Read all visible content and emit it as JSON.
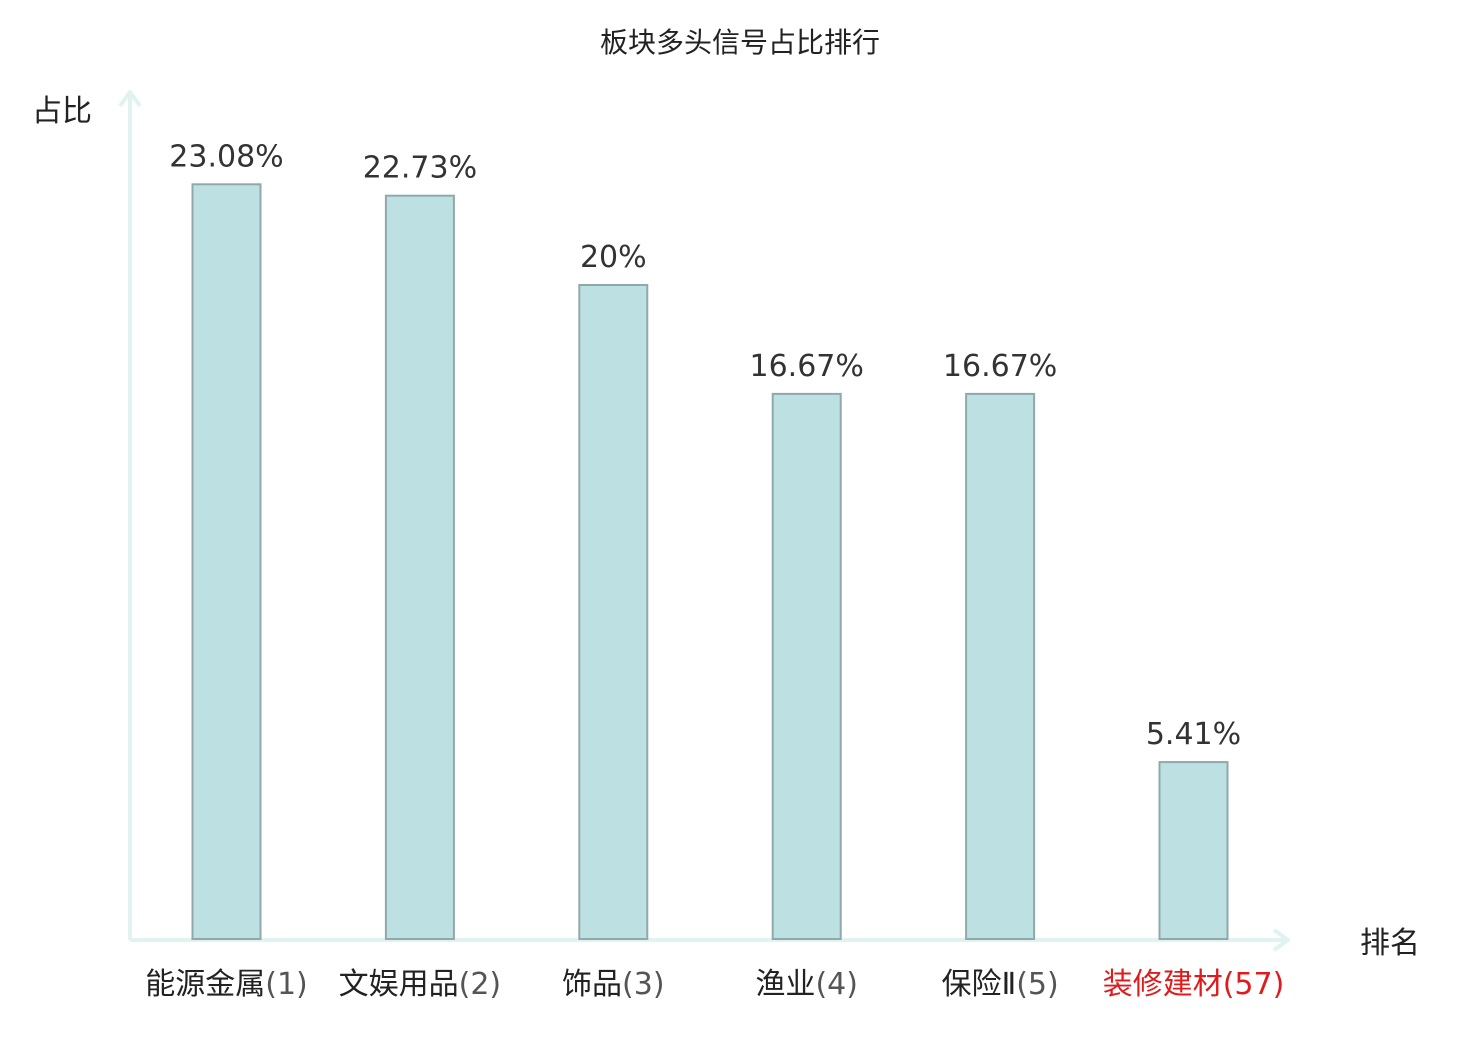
{
  "chart_data": {
    "type": "bar",
    "title": "板块多头信号占比排行",
    "xlabel": "排名",
    "ylabel": "占比",
    "categories": [
      "能源金属",
      "文娱用品",
      "饰品",
      "渔业",
      "保险Ⅱ",
      "装修建材"
    ],
    "ranks": [
      "(1)",
      "(2)",
      "(3)",
      "(4)",
      "(5)",
      "(57)"
    ],
    "highlighted": [
      false,
      false,
      false,
      false,
      false,
      true
    ],
    "values": [
      23.08,
      22.73,
      20,
      16.67,
      16.67,
      5.41
    ],
    "value_labels": [
      "23.08%",
      "22.73%",
      "20%",
      "16.67%",
      "16.67%",
      "5.41%"
    ],
    "ylim": [
      0,
      25
    ],
    "grid": false,
    "legend": "none"
  },
  "colors": {
    "bar_fill": "#bde1e3",
    "bar_stroke": "#8fa9ab",
    "axis": "#e0f3f1",
    "label_normal": "#222222",
    "rank_normal": "#555555",
    "highlight": "#e01b1b"
  }
}
